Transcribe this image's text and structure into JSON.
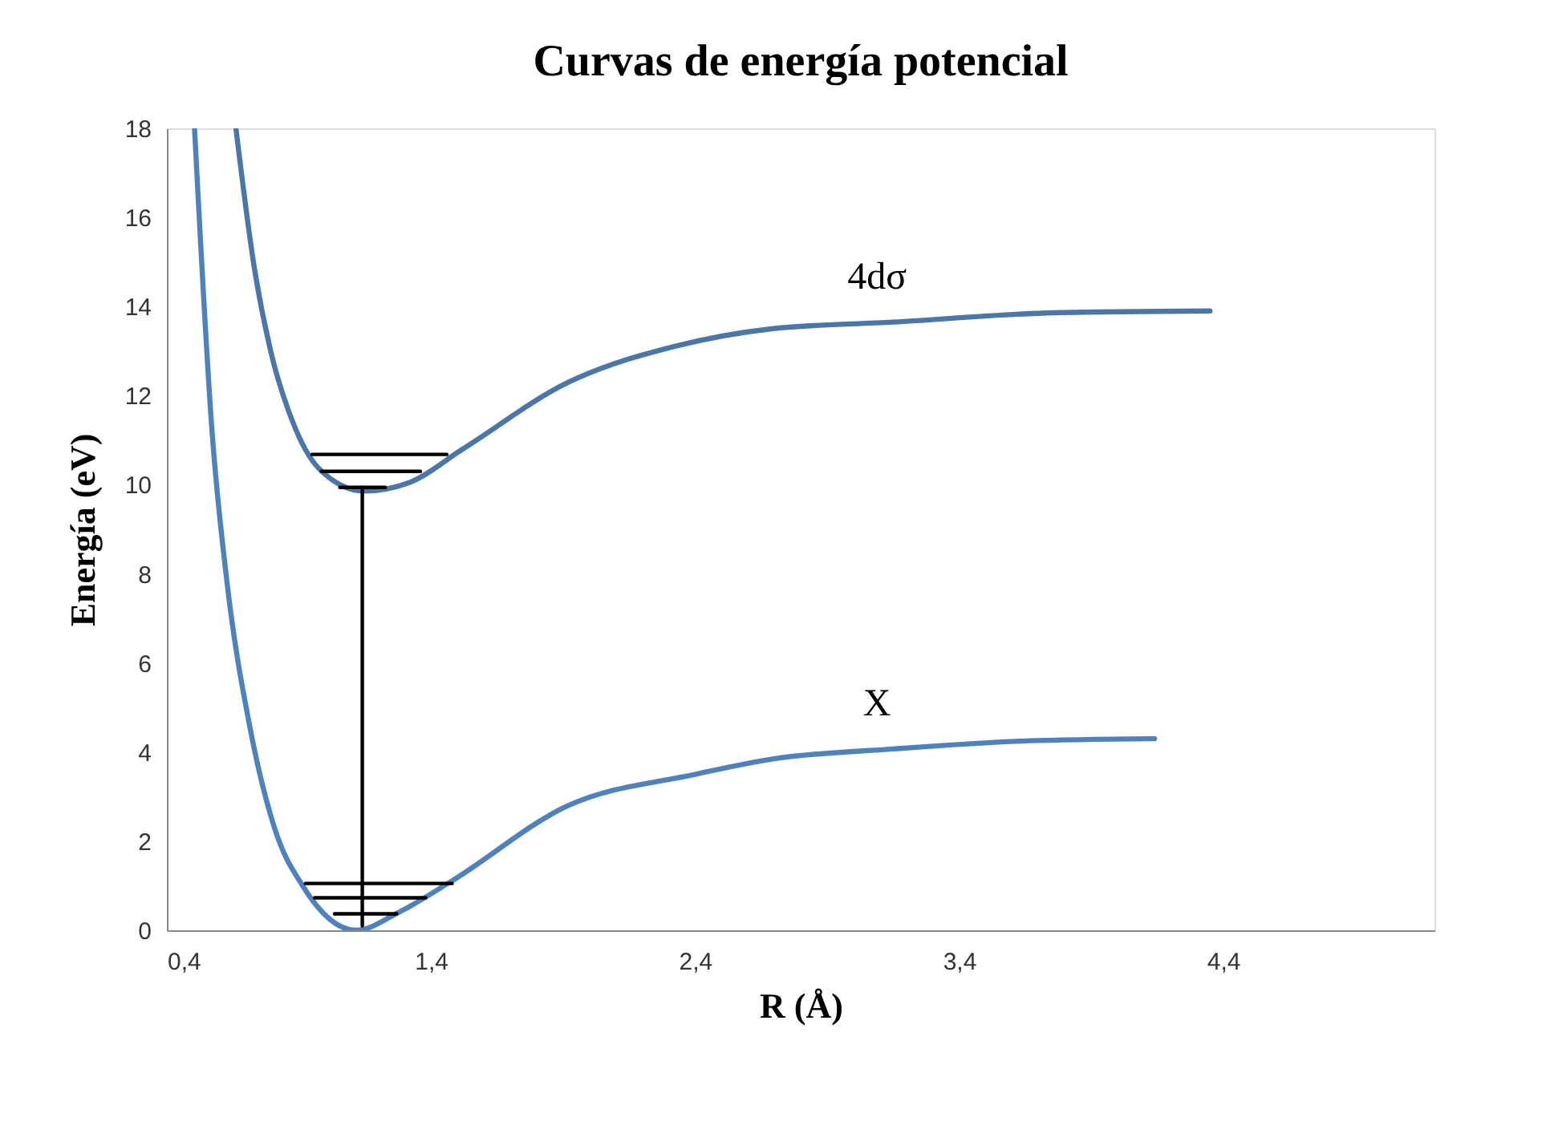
{
  "chart_data": {
    "type": "line",
    "title": "Curvas de energía potencial",
    "xlabel": "R (Å)",
    "ylabel": "Energía (eV)",
    "xlim": [
      0.4,
      5.2
    ],
    "xticks": [
      {
        "value": 0.4,
        "label": "0,4"
      },
      {
        "value": 1.4,
        "label": "1,4"
      },
      {
        "value": 2.4,
        "label": "2,4"
      },
      {
        "value": 3.4,
        "label": "3,4"
      },
      {
        "value": 4.4,
        "label": "4,4"
      }
    ],
    "ylim": [
      0,
      18
    ],
    "yticks": [
      0,
      2,
      4,
      6,
      8,
      10,
      12,
      14,
      16,
      18
    ],
    "grid": false,
    "marker": "none",
    "line_style": "solid",
    "series": [
      {
        "name": "X",
        "color": "#4f81bd",
        "x": [
          0.505,
          0.571,
          0.632,
          0.713,
          0.813,
          0.914,
          1.116,
          1.277,
          1.477,
          1.92,
          2.4,
          2.7,
          3.15,
          3.65,
          4.14
        ],
        "values": [
          17.97,
          11.2,
          7.6,
          4.6,
          2.2,
          1.0,
          0.0,
          0.4,
          1.1,
          2.8,
          3.5,
          3.85,
          4.07,
          4.25,
          4.3
        ]
      },
      {
        "name": "4dσ",
        "color": "#4a76a8",
        "x": [
          0.662,
          0.733,
          0.793,
          0.874,
          0.975,
          1.146,
          1.318,
          1.52,
          1.92,
          2.32,
          2.69,
          3.15,
          3.76,
          4.35
        ],
        "values": [
          17.97,
          14.8,
          13.0,
          11.45,
          10.37,
          9.86,
          10.05,
          10.8,
          12.3,
          13.1,
          13.5,
          13.65,
          13.86,
          13.9
        ]
      },
      {
        "color": "#000000",
        "x": [
          0.925,
          1.48
        ],
        "values": [
          1.05,
          1.05
        ]
      },
      {
        "color": "#000000",
        "x": [
          0.96,
          1.38
        ],
        "values": [
          0.73,
          0.73
        ]
      },
      {
        "color": "#000000",
        "x": [
          1.035,
          1.27
        ],
        "values": [
          0.37,
          0.37
        ]
      },
      {
        "color": "#000000",
        "x": [
          0.95,
          1.46
        ],
        "values": [
          10.68,
          10.68
        ]
      },
      {
        "color": "#000000",
        "x": [
          0.985,
          1.36
        ],
        "values": [
          10.3,
          10.3
        ]
      },
      {
        "color": "#000000",
        "x": [
          1.055,
          1.227
        ],
        "values": [
          9.94,
          9.94
        ]
      },
      {
        "color": "#000000",
        "x": [
          1.14,
          1.14
        ],
        "values": [
          0.1,
          9.94
        ]
      }
    ]
  }
}
